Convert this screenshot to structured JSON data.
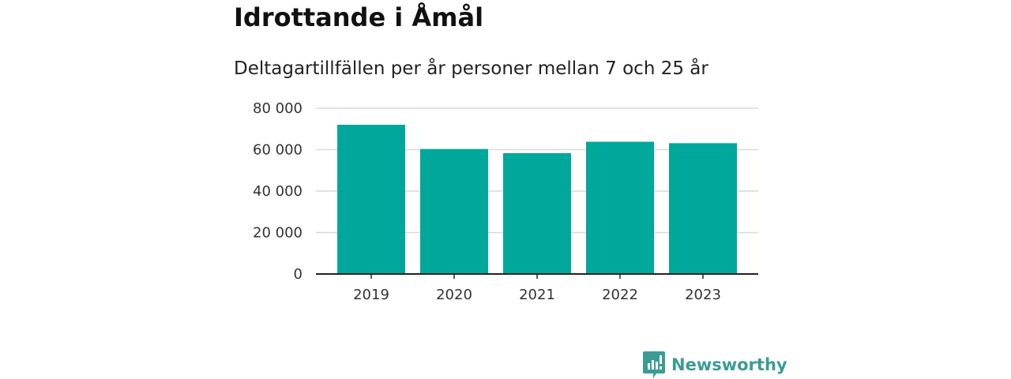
{
  "colors": {
    "bar": "#00a79b",
    "brand": "#3a9c94",
    "grid": "#d9d9d9",
    "axis": "#222222"
  },
  "chart_data": {
    "type": "bar",
    "title": "Idrottande i Åmål",
    "subtitle": "Deltagartillfällen per år personer mellan 7 och 25 år",
    "categories": [
      "2019",
      "2020",
      "2021",
      "2022",
      "2023"
    ],
    "values": [
      72000,
      60300,
      58300,
      63800,
      63100
    ],
    "ylim": [
      0,
      80000
    ],
    "yticks": [
      0,
      20000,
      40000,
      60000,
      80000
    ],
    "ytick_labels": [
      "0",
      "20 000",
      "40 000",
      "60 000",
      "80 000"
    ],
    "xlabel": "",
    "ylabel": "",
    "grid": true,
    "legend": "none"
  },
  "branding": {
    "logo_text": "Newsworthy",
    "logo_icon": "newsworthy-logo-icon"
  }
}
